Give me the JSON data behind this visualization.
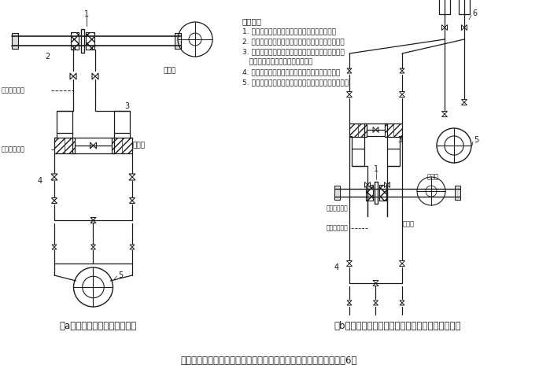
{
  "title": "测量腐蚀液体流量的安装示意图（隔离液密度大于被测液密度）（图6）",
  "caption_a": "（a）差压计装在节流装置下方",
  "caption_b": "（b）差压计装在节流装置上方（沉降器是可选项）",
  "tech_req_title": "技术要求",
  "tech_req": [
    "1. 差压计装在节流装置下方，沉降器是可选项。",
    "2. 向隔离器中充灌液体时，应先灌密度较大的液体。",
    "3. 隔离液体的起始液面是充灌液体必须达到的液面，",
    "   以便保证隔离液有足够的储备量。",
    "4. 隔离液终结液面是重新充灌隔离液体时的液面。",
    "5. 如果被测液体可能析出沉淀物时，建议安装沉降器。"
  ],
  "bg_color": "#ffffff",
  "line_color": "#1a1a1a",
  "font_size_title": 8.5,
  "font_size_labels": 6.5,
  "font_size_caption": 8.5,
  "font_size_tech": 6.8
}
